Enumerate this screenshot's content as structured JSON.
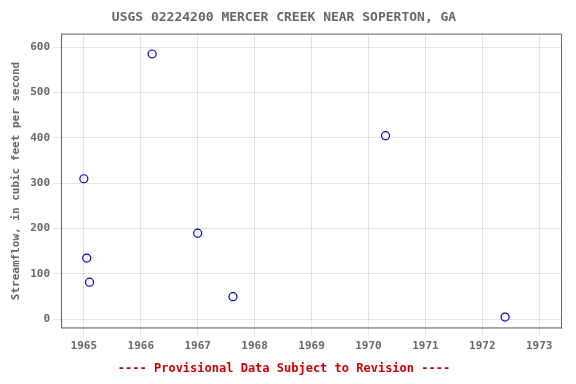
{
  "chart_data": {
    "type": "scatter",
    "title": "USGS 02224200 MERCER CREEK NEAR SOPERTON, GA",
    "ylabel": "Streamflow, in cubic feet per second",
    "x": [
      1965.0,
      1965.05,
      1965.1,
      1966.2,
      1967.0,
      1967.62,
      1970.3,
      1972.4
    ],
    "values": [
      310,
      135,
      82,
      585,
      190,
      50,
      405,
      5
    ],
    "color": "#0000bb",
    "marker": "circle",
    "xlim": [
      1964.6,
      1973.4
    ],
    "xticks": [
      1965,
      1966,
      1967,
      1968,
      1969,
      1970,
      1971,
      1972,
      1973
    ],
    "ylim": [
      -20,
      630
    ],
    "yticks": [
      0,
      100,
      200,
      300,
      400,
      500,
      600
    ],
    "grid": true,
    "annotations": [
      {
        "text": "---- Provisional Data Subject to Revision ----",
        "color": "#cc0000"
      }
    ]
  }
}
